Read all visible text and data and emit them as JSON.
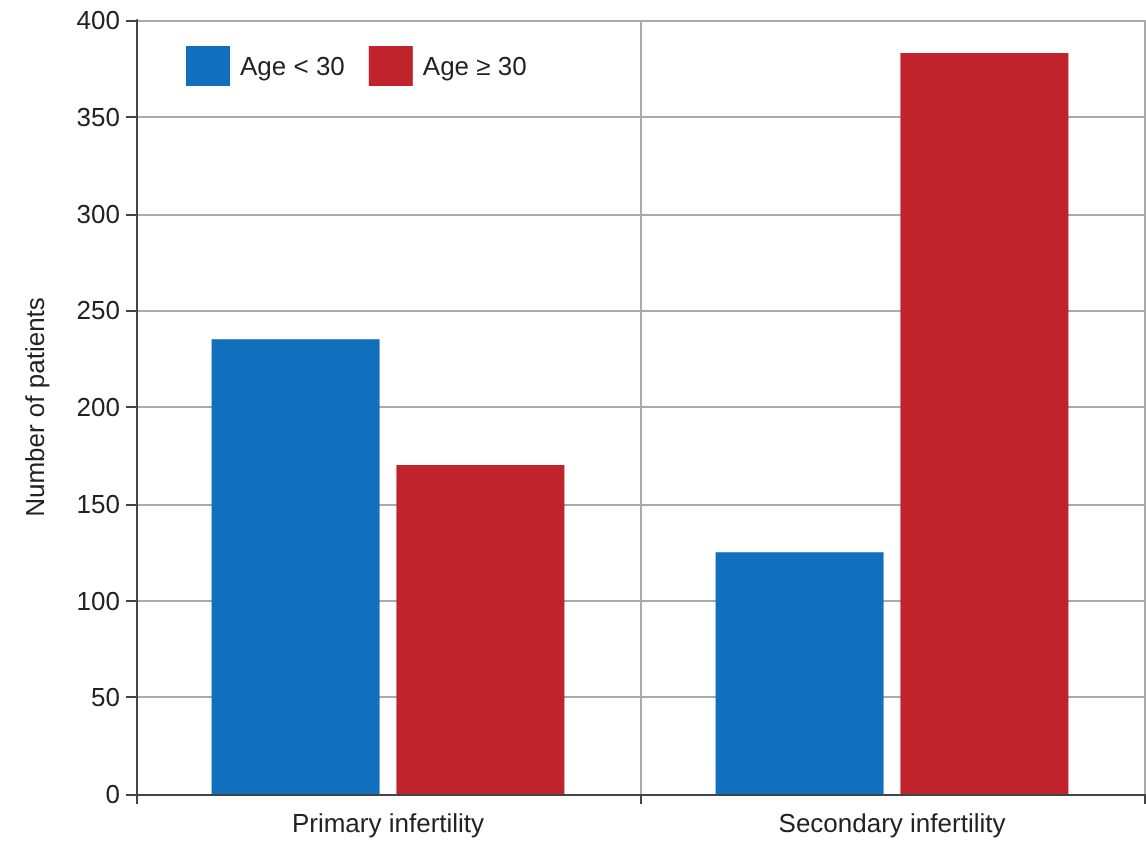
{
  "chart_data": {
    "type": "bar",
    "ylabel": "Number of patients",
    "categories": [
      "Primary infertility",
      "Secondary infertility"
    ],
    "series": [
      {
        "name": "Age < 30",
        "color": "#1170bd",
        "values": [
          235,
          125
        ]
      },
      {
        "name": "Age ≥ 30",
        "color": "#c1232d",
        "values": [
          170,
          383
        ]
      }
    ],
    "ylim": [
      0,
      400
    ],
    "yticks": [
      0,
      50,
      100,
      150,
      200,
      250,
      300,
      350,
      400
    ],
    "grid": true,
    "legend": "top left"
  }
}
